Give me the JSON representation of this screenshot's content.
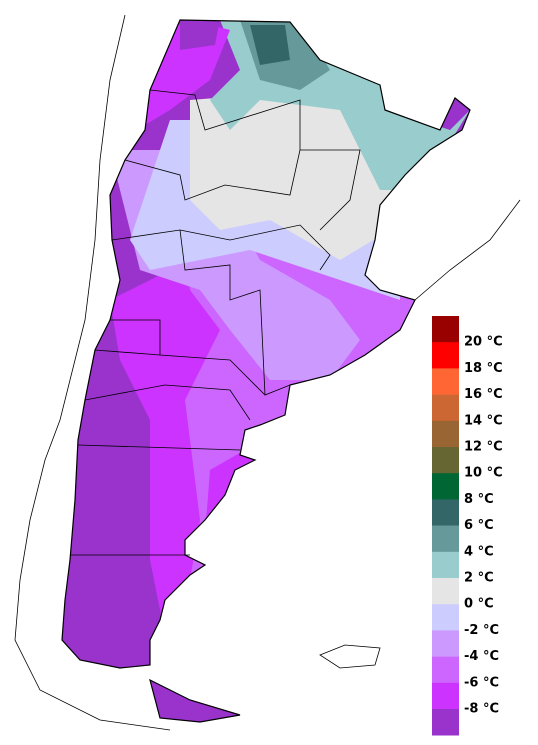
{
  "legend": {
    "labels": [
      "20 °C",
      "18 °C",
      "16 °C",
      "14 °C",
      "12 °C",
      "10 °C",
      "8 °C",
      "6 °C",
      "4 °C",
      "2 °C",
      "0 °C",
      "-2 °C",
      "-4 °C",
      "-6 °C",
      "-8 °C"
    ],
    "colors": [
      "#990000",
      "#ff0000",
      "#ff6633",
      "#cc6633",
      "#996633",
      "#666633",
      "#006633",
      "#336666",
      "#669999",
      "#99cccc",
      "#e5e5e5",
      "#ccccff",
      "#cc99ff",
      "#cc66ff",
      "#cc33ff",
      "#9933cc"
    ]
  }
}
